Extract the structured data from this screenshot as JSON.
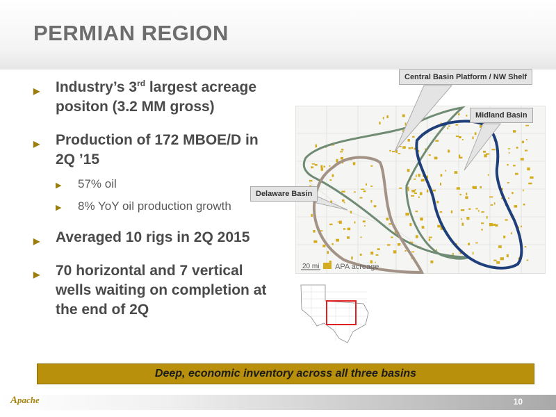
{
  "title": "PERMIAN REGION",
  "bullets": {
    "b1": {
      "pre": "Industry’s 3",
      "sup": "rd",
      "post": " largest acreage positon (3.2 MM gross)"
    },
    "b2": {
      "text": "Production of 172 MBOE/D in 2Q ’15"
    },
    "b2_subs": [
      "57% oil",
      "8% YoY oil production growth"
    ],
    "b3": {
      "text": "Averaged 10 rigs in 2Q 2015"
    },
    "b4": {
      "text": "70 horizontal and 7 vertical wells waiting on completion at the end of 2Q"
    }
  },
  "map": {
    "callouts": {
      "central": "Central Basin Platform / NW Shelf",
      "midland": "Midland Basin",
      "delaware": "Delaware Basin"
    },
    "scale": "20 mi",
    "legend": "APA acreage",
    "colors": {
      "acreage": "#d4ac1f",
      "central_outline": "#6f8b74",
      "midland_outline": "#1f3f7a",
      "delaware_outline": "#a39387",
      "inset_highlight": "#e02020"
    }
  },
  "banner": "Deep, economic inventory across all three basins",
  "footer": {
    "logo": "Apache",
    "page": "10"
  },
  "colors": {
    "bullet_arrow": "#9b7d10",
    "banner": "#b8900c",
    "title": "#6d6d6d"
  }
}
